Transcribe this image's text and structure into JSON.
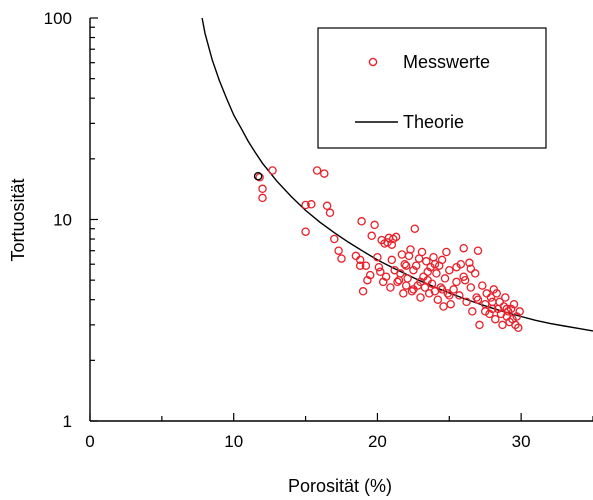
{
  "chart_data": {
    "type": "scatter",
    "xlabel": "Porosität (%)",
    "ylabel": "Tortuosität",
    "xlim": [
      0,
      35
    ],
    "ylim": [
      1,
      100
    ],
    "yscale": "log",
    "x_ticks": [
      0,
      10,
      20,
      30
    ],
    "x_tick_labels": [
      "0",
      "10",
      "20",
      "30"
    ],
    "y_ticks": [
      1,
      10,
      100
    ],
    "y_tick_labels": [
      "1",
      "10",
      "100"
    ],
    "grid": false,
    "legend_position": "top-right",
    "colors": {
      "measurements": "#e8202a",
      "theory": "#000000",
      "highlight_point": "#000000"
    },
    "series": [
      {
        "name": "Messwerte",
        "kind": "scatter",
        "points": [
          [
            11.8,
            16.2
          ],
          [
            12.0,
            14.2
          ],
          [
            12.0,
            12.8
          ],
          [
            12.7,
            17.5
          ],
          [
            15.0,
            11.8
          ],
          [
            15.0,
            8.7
          ],
          [
            15.4,
            11.9
          ],
          [
            15.8,
            17.5
          ],
          [
            16.3,
            16.9
          ],
          [
            16.5,
            11.7
          ],
          [
            16.7,
            10.8
          ],
          [
            17.0,
            8.0
          ],
          [
            17.3,
            7.0
          ],
          [
            17.5,
            6.4
          ],
          [
            18.5,
            6.6
          ],
          [
            18.8,
            6.3
          ],
          [
            18.8,
            5.9
          ],
          [
            18.9,
            9.8
          ],
          [
            19.0,
            4.4
          ],
          [
            19.2,
            5.9
          ],
          [
            19.3,
            5.0
          ],
          [
            19.5,
            5.3
          ],
          [
            19.6,
            8.3
          ],
          [
            19.8,
            9.4
          ],
          [
            20.0,
            6.5
          ],
          [
            20.2,
            5.5
          ],
          [
            20.3,
            7.9
          ],
          [
            20.4,
            4.9
          ],
          [
            20.5,
            7.6
          ],
          [
            20.6,
            5.2
          ],
          [
            20.7,
            7.7
          ],
          [
            20.8,
            8.1
          ],
          [
            20.9,
            4.6
          ],
          [
            21.0,
            6.3
          ],
          [
            21.0,
            7.5
          ],
          [
            21.1,
            8.0
          ],
          [
            21.2,
            5.6
          ],
          [
            21.4,
            4.9
          ],
          [
            21.6,
            5.4
          ],
          [
            21.7,
            6.7
          ],
          [
            21.8,
            4.3
          ],
          [
            21.9,
            6.0
          ],
          [
            22.0,
            4.7
          ],
          [
            22.1,
            5.1
          ],
          [
            22.2,
            6.6
          ],
          [
            22.3,
            7.1
          ],
          [
            22.4,
            4.4
          ],
          [
            22.5,
            5.6
          ],
          [
            22.6,
            9.0
          ],
          [
            22.7,
            5.9
          ],
          [
            22.8,
            4.7
          ],
          [
            22.9,
            6.4
          ],
          [
            23.0,
            4.1
          ],
          [
            23.1,
            6.9
          ],
          [
            23.2,
            5.2
          ],
          [
            23.3,
            4.6
          ],
          [
            23.4,
            6.2
          ],
          [
            23.5,
            5.0
          ],
          [
            23.6,
            4.3
          ],
          [
            23.7,
            5.8
          ],
          [
            23.8,
            4.8
          ],
          [
            23.9,
            6.5
          ],
          [
            24.0,
            4.4
          ],
          [
            24.1,
            5.4
          ],
          [
            24.2,
            4.0
          ],
          [
            24.3,
            5.9
          ],
          [
            24.4,
            4.6
          ],
          [
            24.5,
            6.3
          ],
          [
            24.6,
            3.7
          ],
          [
            24.7,
            5.1
          ],
          [
            24.8,
            6.9
          ],
          [
            24.9,
            4.3
          ],
          [
            25.0,
            5.6
          ],
          [
            25.1,
            3.8
          ],
          [
            25.3,
            4.5
          ],
          [
            25.5,
            5.8
          ],
          [
            25.7,
            4.2
          ],
          [
            25.8,
            6.0
          ],
          [
            26.0,
            7.2
          ],
          [
            26.1,
            5.0
          ],
          [
            26.2,
            3.9
          ],
          [
            26.4,
            6.1
          ],
          [
            26.5,
            4.6
          ],
          [
            26.6,
            3.5
          ],
          [
            26.8,
            5.4
          ],
          [
            26.9,
            4.1
          ],
          [
            27.0,
            7.0
          ],
          [
            27.1,
            3.0
          ],
          [
            27.3,
            4.7
          ],
          [
            27.5,
            3.8
          ],
          [
            27.6,
            4.3
          ],
          [
            27.8,
            3.4
          ],
          [
            27.9,
            4.1
          ],
          [
            28.0,
            3.6
          ],
          [
            28.1,
            4.5
          ],
          [
            28.2,
            3.2
          ],
          [
            28.3,
            4.3
          ],
          [
            28.4,
            3.6
          ],
          [
            28.5,
            3.9
          ],
          [
            28.6,
            3.4
          ],
          [
            28.7,
            3.0
          ],
          [
            28.8,
            3.7
          ],
          [
            28.9,
            4.1
          ],
          [
            29.0,
            3.3
          ],
          [
            29.1,
            3.5
          ],
          [
            29.2,
            3.1
          ],
          [
            29.3,
            3.6
          ],
          [
            29.4,
            3.2
          ],
          [
            29.5,
            3.8
          ],
          [
            29.6,
            3.0
          ],
          [
            29.7,
            3.3
          ],
          [
            29.8,
            2.9
          ],
          [
            29.9,
            3.5
          ],
          [
            21.3,
            8.2
          ],
          [
            22.0,
            5.9
          ],
          [
            23.0,
            4.9
          ],
          [
            24.0,
            6.0
          ],
          [
            25.0,
            4.2
          ],
          [
            26.0,
            5.2
          ],
          [
            27.0,
            4.0
          ],
          [
            28.0,
            3.9
          ],
          [
            29.0,
            3.6
          ],
          [
            20.1,
            5.8
          ],
          [
            21.5,
            5.0
          ],
          [
            22.5,
            4.5
          ],
          [
            23.5,
            5.5
          ],
          [
            24.5,
            4.5
          ],
          [
            25.5,
            4.9
          ],
          [
            26.5,
            5.7
          ],
          [
            27.5,
            3.5
          ]
        ]
      },
      {
        "name": "Theorie",
        "kind": "line",
        "points": [
          [
            7.8,
            100
          ],
          [
            8.0,
            84
          ],
          [
            8.5,
            62
          ],
          [
            9.0,
            49
          ],
          [
            9.5,
            40
          ],
          [
            10.0,
            33
          ],
          [
            10.5,
            28.5
          ],
          [
            11.0,
            24.5
          ],
          [
            11.5,
            21.5
          ],
          [
            12.0,
            19
          ],
          [
            13.0,
            15.5
          ],
          [
            14.0,
            13
          ],
          [
            15.0,
            11.1
          ],
          [
            16.0,
            9.7
          ],
          [
            17.0,
            8.6
          ],
          [
            18.0,
            7.7
          ],
          [
            19.0,
            6.95
          ],
          [
            20.0,
            6.3
          ],
          [
            21.0,
            5.8
          ],
          [
            22.0,
            5.35
          ],
          [
            23.0,
            4.95
          ],
          [
            24.0,
            4.62
          ],
          [
            25.0,
            4.32
          ],
          [
            26.0,
            4.06
          ],
          [
            27.0,
            3.83
          ],
          [
            28.0,
            3.63
          ],
          [
            29.0,
            3.45
          ],
          [
            30.0,
            3.3
          ],
          [
            31.0,
            3.16
          ],
          [
            32.0,
            3.05
          ],
          [
            33.0,
            2.96
          ],
          [
            34.0,
            2.88
          ],
          [
            35.0,
            2.8
          ]
        ]
      }
    ],
    "highlight_point": [
      11.7,
      16.4
    ]
  }
}
